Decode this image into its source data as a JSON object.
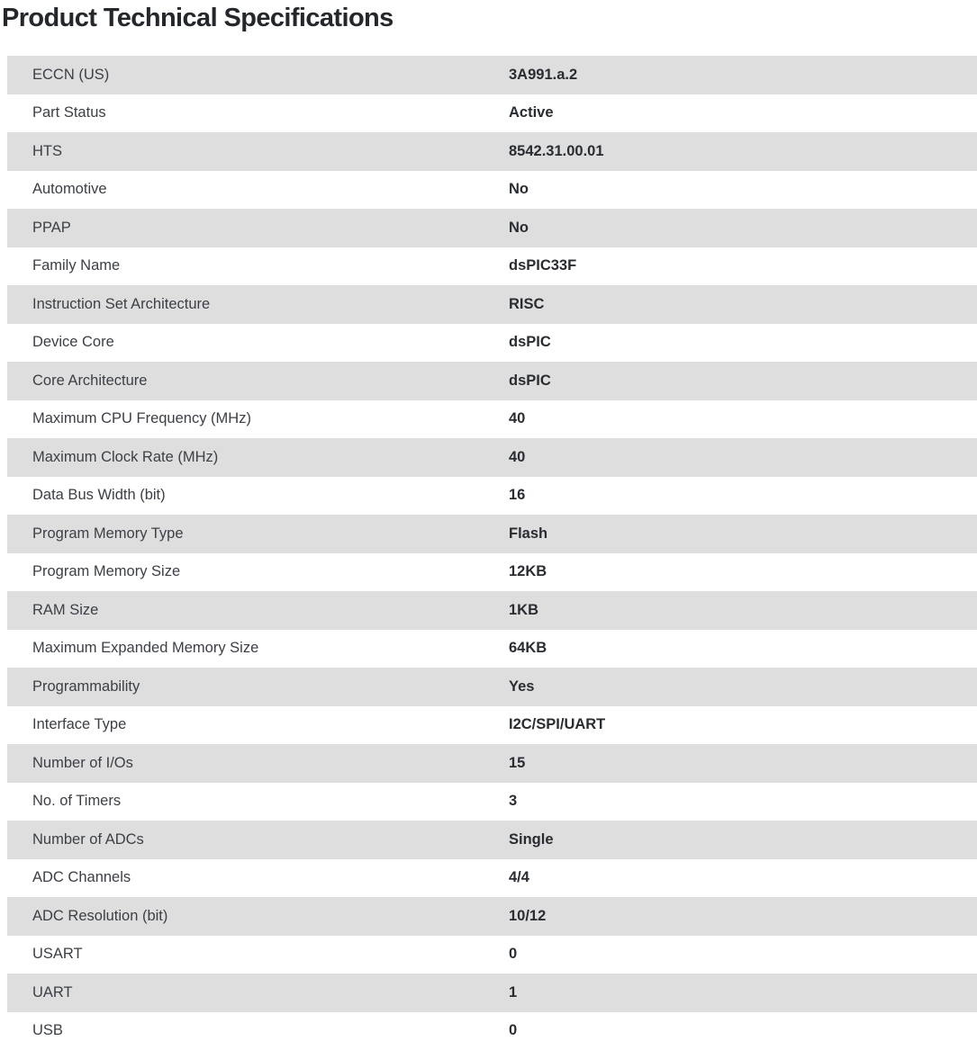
{
  "page": {
    "title": "Product Technical Specifications"
  },
  "spec_table": {
    "row_stripe_color": "#dedede",
    "rows": [
      {
        "label": "ECCN (US)",
        "value": "3A991.a.2"
      },
      {
        "label": "Part Status",
        "value": "Active"
      },
      {
        "label": "HTS",
        "value": "8542.31.00.01"
      },
      {
        "label": "Automotive",
        "value": "No"
      },
      {
        "label": "PPAP",
        "value": "No"
      },
      {
        "label": "Family Name",
        "value": "dsPIC33F"
      },
      {
        "label": "Instruction Set Architecture",
        "value": "RISC"
      },
      {
        "label": "Device Core",
        "value": "dsPIC"
      },
      {
        "label": "Core Architecture",
        "value": "dsPIC"
      },
      {
        "label": "Maximum CPU Frequency (MHz)",
        "value": "40"
      },
      {
        "label": "Maximum Clock Rate (MHz)",
        "value": "40"
      },
      {
        "label": "Data Bus Width (bit)",
        "value": "16"
      },
      {
        "label": "Program Memory Type",
        "value": "Flash"
      },
      {
        "label": "Program Memory Size",
        "value": "12KB"
      },
      {
        "label": "RAM Size",
        "value": "1KB"
      },
      {
        "label": "Maximum Expanded Memory Size",
        "value": "64KB"
      },
      {
        "label": "Programmability",
        "value": "Yes"
      },
      {
        "label": "Interface Type",
        "value": "I2C/SPI/UART"
      },
      {
        "label": "Number of I/Os",
        "value": "15"
      },
      {
        "label": "No. of Timers",
        "value": "3"
      },
      {
        "label": "Number of ADCs",
        "value": "Single"
      },
      {
        "label": "ADC Channels",
        "value": "4/4"
      },
      {
        "label": "ADC Resolution (bit)",
        "value": "10/12"
      },
      {
        "label": "USART",
        "value": "0"
      },
      {
        "label": "UART",
        "value": "1"
      },
      {
        "label": "USB",
        "value": "0"
      }
    ]
  }
}
